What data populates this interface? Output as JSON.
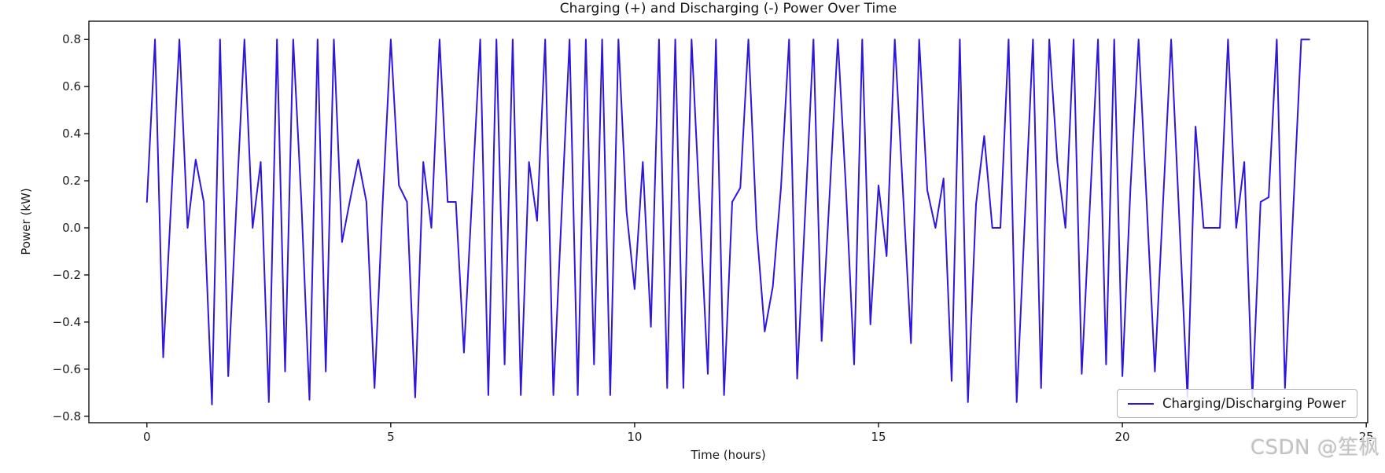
{
  "figure": {
    "watermark": "CSDN @笙枫"
  },
  "chart_data": {
    "type": "line",
    "title": "Charging (+) and Discharging (-) Power Over Time",
    "xlabel": "Time (hours)",
    "ylabel": "Power (kW)",
    "legend": [
      "Charging/Discharging Power"
    ],
    "legend_position": "lower right",
    "grid": false,
    "line_color": "#2f16dd",
    "xlim": [
      -1.19,
      25.03
    ],
    "ylim": [
      -0.8275,
      0.8775
    ],
    "x_ticks": [
      0,
      5,
      10,
      15,
      20,
      25
    ],
    "x_tick_labels": [
      "0",
      "5",
      "10",
      "15",
      "20",
      "25"
    ],
    "y_ticks": [
      0.8,
      0.6,
      0.4,
      0.2,
      0.0,
      -0.2,
      -0.4,
      -0.6,
      -0.8
    ],
    "y_tick_labels": [
      "0.8",
      "0.6",
      "0.4",
      "0.2",
      "0.0",
      "−0.2",
      "−0.4",
      "−0.6",
      "−0.8"
    ],
    "series": [
      {
        "name": "Charging/Discharging Power",
        "t_start_hours": 0,
        "t_step_hours": 0.1666667,
        "power_kw": [
          0.11,
          0.8,
          -0.55,
          0.12,
          0.8,
          0.0,
          0.29,
          0.11,
          -0.75,
          0.8,
          -0.63,
          0.09,
          0.8,
          0.0,
          0.28,
          -0.74,
          0.8,
          -0.61,
          0.8,
          0.11,
          -0.73,
          0.8,
          -0.61,
          0.8,
          -0.06,
          0.12,
          0.29,
          0.11,
          -0.68,
          0.1,
          0.8,
          0.18,
          0.11,
          -0.72,
          0.28,
          0.0,
          0.8,
          0.11,
          0.11,
          -0.53,
          0.13,
          0.8,
          -0.71,
          0.8,
          -0.58,
          0.8,
          -0.71,
          0.28,
          0.03,
          0.8,
          -0.71,
          0.05,
          0.8,
          -0.71,
          0.8,
          -0.58,
          0.8,
          -0.71,
          0.8,
          0.07,
          -0.26,
          0.28,
          -0.42,
          0.8,
          -0.68,
          0.8,
          -0.68,
          0.8,
          0.09,
          -0.62,
          0.8,
          -0.71,
          0.11,
          0.17,
          0.8,
          0.0,
          -0.44,
          -0.25,
          0.17,
          0.8,
          -0.64,
          0.08,
          0.8,
          -0.48,
          0.15,
          0.8,
          0.16,
          -0.58,
          0.8,
          -0.41,
          0.18,
          -0.12,
          0.8,
          0.16,
          -0.49,
          0.8,
          0.16,
          0.0,
          0.21,
          -0.65,
          0.8,
          -0.74,
          0.1,
          0.39,
          0.0,
          0.0,
          0.8,
          -0.74,
          0.03,
          0.8,
          -0.68,
          0.8,
          0.28,
          0.0,
          0.8,
          -0.62,
          0.09,
          0.8,
          -0.58,
          0.8,
          -0.63,
          0.17,
          0.8,
          0.1,
          -0.61,
          0.1,
          0.8,
          0.04,
          -0.72,
          0.43,
          0.0,
          0.0,
          0.0,
          0.8,
          0.0,
          0.28,
          -0.72,
          0.11,
          0.13,
          0.8,
          -0.68,
          0.06,
          0.8,
          0.8
        ]
      }
    ]
  }
}
